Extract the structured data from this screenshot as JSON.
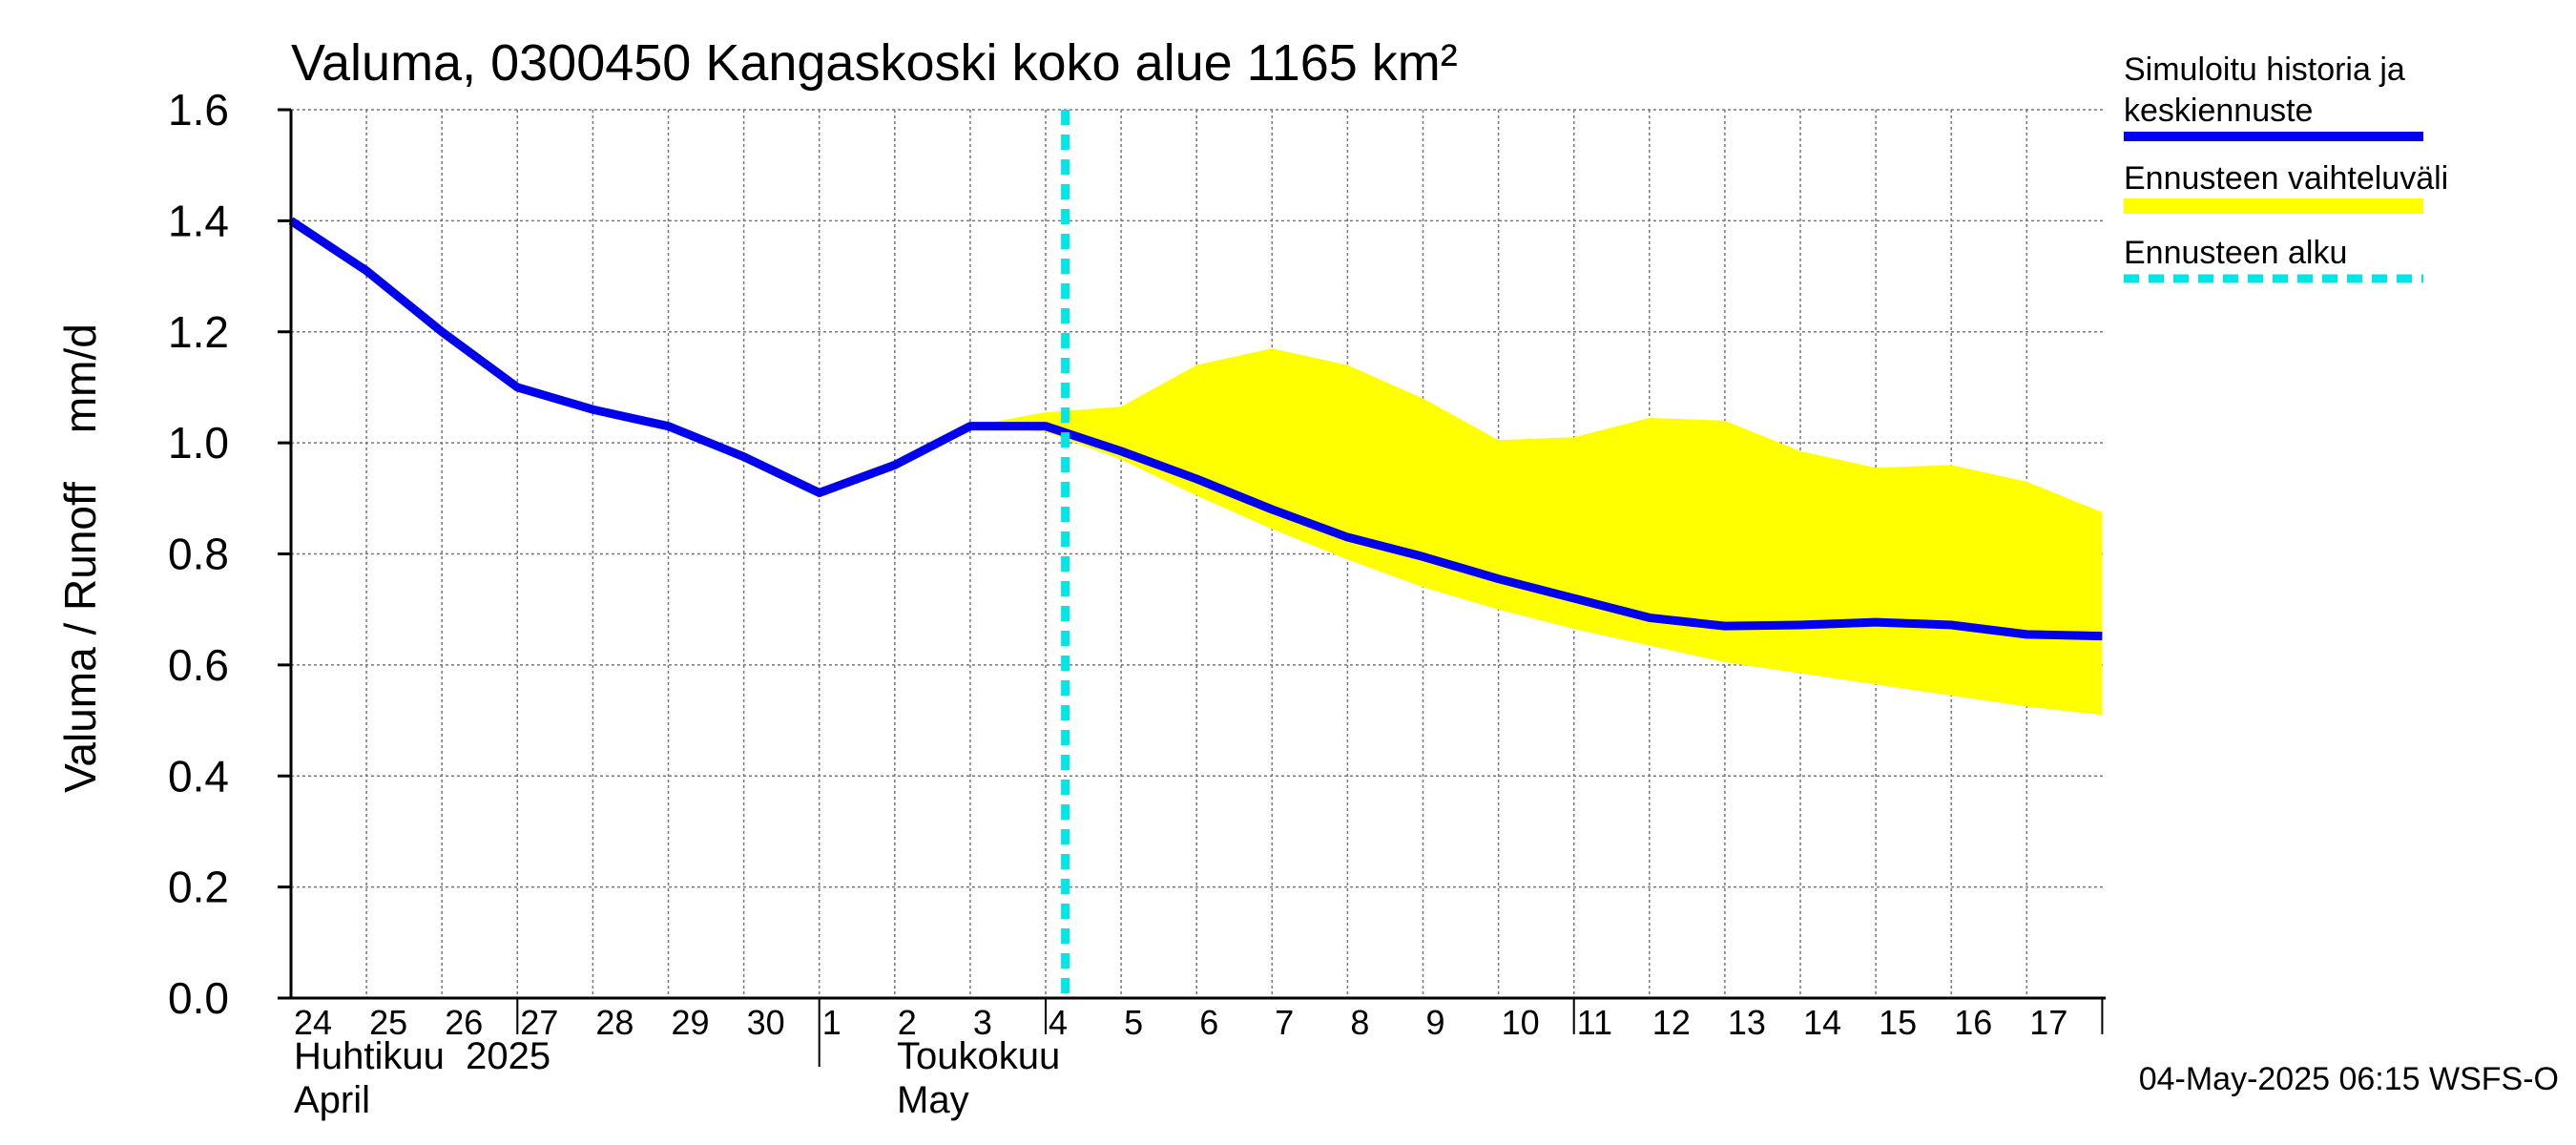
{
  "chart_data": {
    "type": "line",
    "title": "Valuma, 0300450 Kangaskoski koko alue 1165 km²",
    "ylabel": "Valuma / Runoff    mm/d",
    "ylim": [
      0,
      1.6
    ],
    "yticks": [
      "0.0",
      "0.2",
      "0.4",
      "0.6",
      "0.8",
      "1.0",
      "1.2",
      "1.4",
      "1.6"
    ],
    "x_dates": [
      "2025-04-24",
      "2025-04-25",
      "2025-04-26",
      "2025-04-27",
      "2025-04-28",
      "2025-04-29",
      "2025-04-30",
      "2025-05-01",
      "2025-05-02",
      "2025-05-03",
      "2025-05-04",
      "2025-05-05",
      "2025-05-06",
      "2025-05-07",
      "2025-05-08",
      "2025-05-09",
      "2025-05-10",
      "2025-05-11",
      "2025-05-12",
      "2025-05-13",
      "2025-05-14",
      "2025-05-15",
      "2025-05-16",
      "2025-05-17"
    ],
    "x_tick_labels": [
      "24",
      "25",
      "26",
      "27",
      "28",
      "29",
      "30",
      "1",
      "2",
      "3",
      "4",
      "5",
      "6",
      "7",
      "8",
      "9",
      "10",
      "11",
      "12",
      "13",
      "14",
      "15",
      "16",
      "17"
    ],
    "month_labels": [
      {
        "line1": "Huhtikuu  2025",
        "line2": "April"
      },
      {
        "line1": "Toukokuu",
        "line2": "May"
      }
    ],
    "forecast_start": "2025-05-04 06:15",
    "grid": true,
    "legend_position": "right",
    "series": [
      {
        "name": "Simuloitu historia ja keskiennuste",
        "color": "#0000ee",
        "points": [
          [
            "2025-04-24",
            1.4
          ],
          [
            "2025-04-25",
            1.31
          ],
          [
            "2025-04-26",
            1.2
          ],
          [
            "2025-04-27",
            1.1
          ],
          [
            "2025-04-28",
            1.06
          ],
          [
            "2025-04-29",
            1.03
          ],
          [
            "2025-04-30",
            0.975
          ],
          [
            "2025-05-01",
            0.91
          ],
          [
            "2025-05-02",
            0.96
          ],
          [
            "2025-05-03",
            1.03
          ],
          [
            "2025-05-04",
            1.03
          ],
          [
            "2025-05-05",
            0.985
          ],
          [
            "2025-05-06",
            0.935
          ],
          [
            "2025-05-07",
            0.88
          ],
          [
            "2025-05-08",
            0.83
          ],
          [
            "2025-05-09",
            0.795
          ],
          [
            "2025-05-10",
            0.755
          ],
          [
            "2025-05-11",
            0.72
          ],
          [
            "2025-05-12",
            0.685
          ],
          [
            "2025-05-13",
            0.67
          ],
          [
            "2025-05-14",
            0.672
          ],
          [
            "2025-05-15",
            0.677
          ],
          [
            "2025-05-16",
            0.672
          ],
          [
            "2025-05-17",
            0.655
          ],
          [
            "2025-05-18",
            0.652
          ]
        ]
      },
      {
        "name": "Ennusteen vaihteluväli",
        "color": "#ffff00",
        "band_upper": [
          [
            "2025-05-03",
            1.03
          ],
          [
            "2025-05-04",
            1.055
          ],
          [
            "2025-05-05",
            1.065
          ],
          [
            "2025-05-06",
            1.14
          ],
          [
            "2025-05-07",
            1.17
          ],
          [
            "2025-05-08",
            1.14
          ],
          [
            "2025-05-09",
            1.08
          ],
          [
            "2025-05-10",
            1.005
          ],
          [
            "2025-05-11",
            1.01
          ],
          [
            "2025-05-12",
            1.045
          ],
          [
            "2025-05-13",
            1.04
          ],
          [
            "2025-05-14",
            0.985
          ],
          [
            "2025-05-15",
            0.955
          ],
          [
            "2025-05-16",
            0.96
          ],
          [
            "2025-05-17",
            0.93
          ],
          [
            "2025-05-18",
            0.875
          ]
        ],
        "band_lower": [
          [
            "2025-05-03",
            1.03
          ],
          [
            "2025-05-04",
            1.02
          ],
          [
            "2025-05-05",
            0.97
          ],
          [
            "2025-05-06",
            0.905
          ],
          [
            "2025-05-07",
            0.845
          ],
          [
            "2025-05-08",
            0.79
          ],
          [
            "2025-05-09",
            0.74
          ],
          [
            "2025-05-10",
            0.7
          ],
          [
            "2025-05-11",
            0.665
          ],
          [
            "2025-05-12",
            0.635
          ],
          [
            "2025-05-13",
            0.605
          ],
          [
            "2025-05-14",
            0.585
          ],
          [
            "2025-05-15",
            0.565
          ],
          [
            "2025-05-16",
            0.545
          ],
          [
            "2025-05-17",
            0.525
          ],
          [
            "2025-05-18",
            0.51
          ]
        ]
      },
      {
        "name": "Ennusteen alku",
        "color": "#00e5e5",
        "x": "2025-05-04 06:15"
      }
    ],
    "legend": [
      {
        "line1": "Simuloitu historia ja",
        "line2": "keskiennuste",
        "style": "line",
        "color": "#0000ee"
      },
      {
        "line1": "Ennusteen vaihteluväli",
        "line2": "",
        "style": "band",
        "color": "#ffff00"
      },
      {
        "line1": "Ennusteen alku",
        "line2": "",
        "style": "dashed",
        "color": "#00e5e5"
      }
    ],
    "footer": "04-May-2025 06:15 WSFS-O"
  }
}
